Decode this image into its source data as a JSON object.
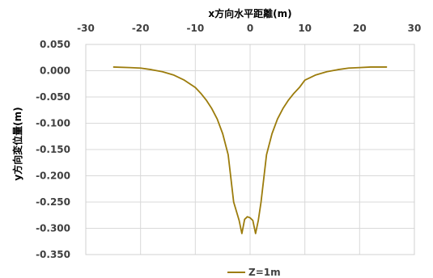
{
  "chart_data": {
    "type": "line",
    "xlabel": "x方向水平距離(m)",
    "ylabel": "y方向変位量(m)",
    "xlim": [
      -30,
      30
    ],
    "ylim": [
      -0.35,
      0.05
    ],
    "xticks": [
      -30,
      -20,
      -10,
      0,
      10,
      20,
      30
    ],
    "xtick_labels": [
      "-30",
      "-20",
      "-10",
      "0",
      "10",
      "20",
      "30"
    ],
    "yticks": [
      0.05,
      0.0,
      -0.05,
      -0.1,
      -0.15,
      -0.2,
      -0.25,
      -0.3,
      -0.35
    ],
    "ytick_labels": [
      "0.050",
      "0.000",
      "-0.050",
      "-0.100",
      "-0.150",
      "-0.200",
      "-0.250",
      "-0.300",
      "-0.350"
    ],
    "grid": true,
    "x_axis_position": "top",
    "legend_position": "bottom",
    "series": [
      {
        "name": "Z=1m",
        "color": "#9C7C0C",
        "x": [
          -25,
          -22,
          -20,
          -18,
          -16,
          -14,
          -12,
          -10,
          -9,
          -8,
          -7,
          -6,
          -5,
          -4,
          -3,
          -2,
          -1.5,
          -1,
          -0.5,
          0,
          0.5,
          1,
          1.5,
          2,
          3,
          4,
          5,
          6,
          7,
          8,
          9,
          10,
          12,
          14,
          16,
          18,
          20,
          22,
          25
        ],
        "y": [
          0.007,
          0.006,
          0.005,
          0.002,
          -0.002,
          -0.008,
          -0.018,
          -0.032,
          -0.043,
          -0.056,
          -0.072,
          -0.092,
          -0.12,
          -0.16,
          -0.25,
          -0.285,
          -0.31,
          -0.283,
          -0.278,
          -0.28,
          -0.285,
          -0.31,
          -0.285,
          -0.25,
          -0.16,
          -0.12,
          -0.092,
          -0.072,
          -0.056,
          -0.043,
          -0.032,
          -0.018,
          -0.008,
          -0.002,
          0.002,
          0.005,
          0.006,
          0.007,
          0.007
        ]
      }
    ]
  }
}
